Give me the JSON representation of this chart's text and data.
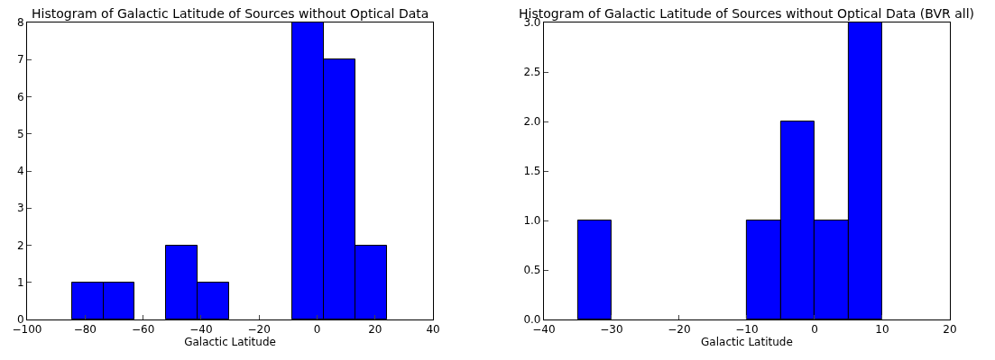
{
  "chart_data": [
    {
      "type": "histogram",
      "title": "Histogram of Galactic Latitude of Sources without Optical Data",
      "xlabel": "Galactic Latitude",
      "bins": [
        -84.6,
        -73.7,
        -62.9,
        -52.0,
        -41.2,
        -30.3,
        -19.4,
        -8.6,
        2.3,
        13.1,
        24.0
      ],
      "values": [
        1,
        1,
        0,
        2,
        1,
        0,
        0,
        8,
        7,
        2
      ],
      "color": "#0000ff",
      "xlim": [
        -100,
        40
      ],
      "xticks": [
        -100,
        -80,
        -60,
        -40,
        -20,
        0,
        20,
        40
      ],
      "ylim": [
        0,
        8
      ],
      "yticks": [
        0,
        1,
        2,
        3,
        4,
        5,
        6,
        7,
        8
      ],
      "legend": false
    },
    {
      "type": "histogram",
      "title": "Histogram of Galactic Latitude of Sources without Optical Data (BVR all)",
      "xlabel": "Galactic Latitude",
      "bins": [
        -35,
        -30,
        -25,
        -20,
        -15,
        -10,
        -5,
        0,
        5,
        10
      ],
      "values": [
        1,
        0,
        0,
        0,
        0,
        1,
        2,
        1,
        3
      ],
      "color": "#0000ff",
      "xlim": [
        -40,
        20
      ],
      "xticks": [
        -40,
        -30,
        -20,
        -10,
        0,
        10,
        20
      ],
      "ylim": [
        0,
        3
      ],
      "yticks": [
        {
          "value": 0,
          "label": "0.0"
        },
        {
          "value": 0.5,
          "label": "0.5"
        },
        {
          "value": 1,
          "label": "1.0"
        },
        {
          "value": 1.5,
          "label": "1.5"
        },
        {
          "value": 2,
          "label": "2.0"
        },
        {
          "value": 2.5,
          "label": "2.5"
        },
        {
          "value": 3,
          "label": "3.0"
        }
      ],
      "legend": false
    }
  ]
}
